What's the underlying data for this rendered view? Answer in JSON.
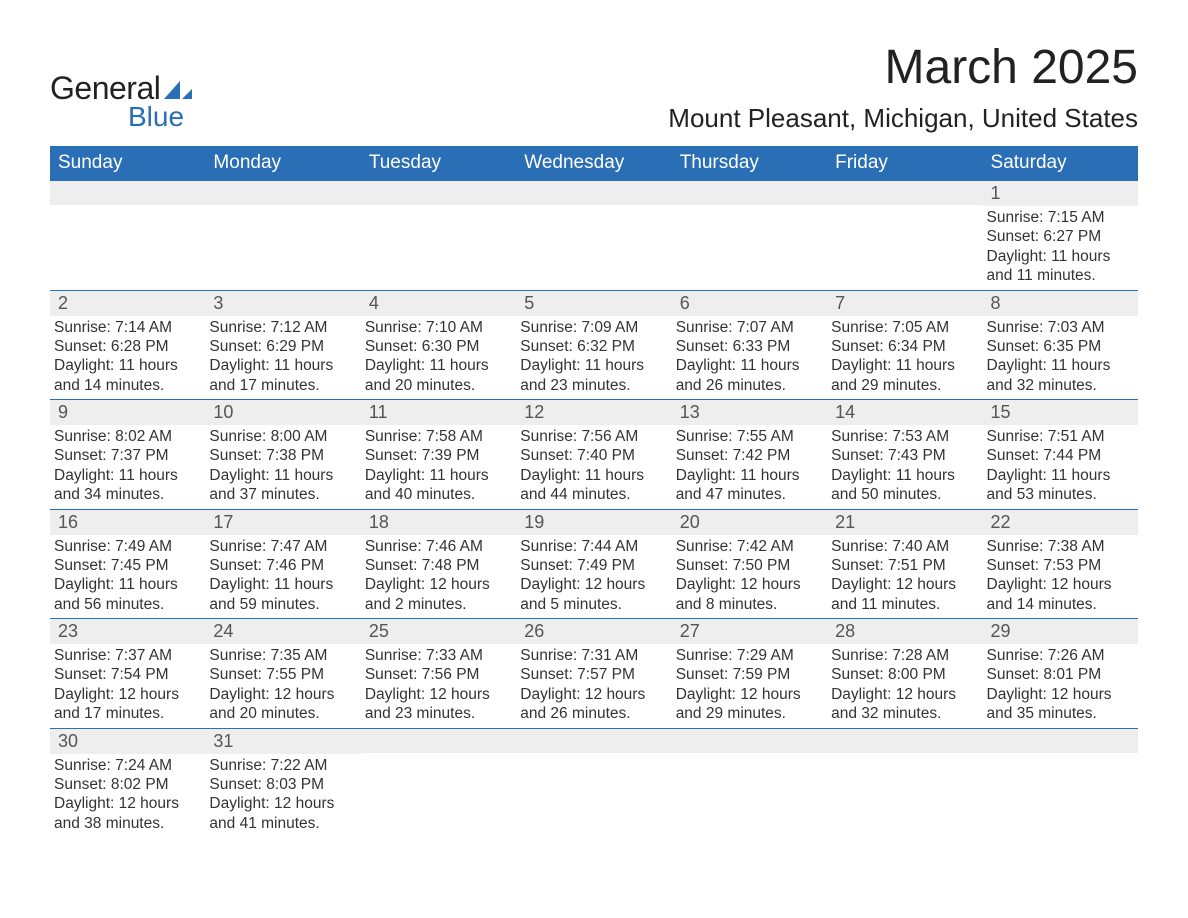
{
  "logo": {
    "text1": "General",
    "text2": "Blue",
    "accent_color": "#2a6fb5"
  },
  "title": "March 2025",
  "location": "Mount Pleasant, Michigan, United States",
  "colors": {
    "header_bg": "#2a6fb5",
    "header_text": "#ffffff",
    "daynum_bg": "#eeeeee",
    "daynum_text": "#555555",
    "body_text": "#333333",
    "cell_border": "#2a6fb5",
    "page_bg": "#ffffff"
  },
  "typography": {
    "title_fontsize": 48,
    "location_fontsize": 26,
    "header_fontsize": 19,
    "daynum_fontsize": 18,
    "body_fontsize": 15.5
  },
  "day_headers": [
    "Sunday",
    "Monday",
    "Tuesday",
    "Wednesday",
    "Thursday",
    "Friday",
    "Saturday"
  ],
  "weeks": [
    [
      null,
      null,
      null,
      null,
      null,
      null,
      {
        "n": "1",
        "sr": "7:15 AM",
        "ss": "6:27 PM",
        "dl": "11 hours and 11 minutes."
      }
    ],
    [
      {
        "n": "2",
        "sr": "7:14 AM",
        "ss": "6:28 PM",
        "dl": "11 hours and 14 minutes."
      },
      {
        "n": "3",
        "sr": "7:12 AM",
        "ss": "6:29 PM",
        "dl": "11 hours and 17 minutes."
      },
      {
        "n": "4",
        "sr": "7:10 AM",
        "ss": "6:30 PM",
        "dl": "11 hours and 20 minutes."
      },
      {
        "n": "5",
        "sr": "7:09 AM",
        "ss": "6:32 PM",
        "dl": "11 hours and 23 minutes."
      },
      {
        "n": "6",
        "sr": "7:07 AM",
        "ss": "6:33 PM",
        "dl": "11 hours and 26 minutes."
      },
      {
        "n": "7",
        "sr": "7:05 AM",
        "ss": "6:34 PM",
        "dl": "11 hours and 29 minutes."
      },
      {
        "n": "8",
        "sr": "7:03 AM",
        "ss": "6:35 PM",
        "dl": "11 hours and 32 minutes."
      }
    ],
    [
      {
        "n": "9",
        "sr": "8:02 AM",
        "ss": "7:37 PM",
        "dl": "11 hours and 34 minutes."
      },
      {
        "n": "10",
        "sr": "8:00 AM",
        "ss": "7:38 PM",
        "dl": "11 hours and 37 minutes."
      },
      {
        "n": "11",
        "sr": "7:58 AM",
        "ss": "7:39 PM",
        "dl": "11 hours and 40 minutes."
      },
      {
        "n": "12",
        "sr": "7:56 AM",
        "ss": "7:40 PM",
        "dl": "11 hours and 44 minutes."
      },
      {
        "n": "13",
        "sr": "7:55 AM",
        "ss": "7:42 PM",
        "dl": "11 hours and 47 minutes."
      },
      {
        "n": "14",
        "sr": "7:53 AM",
        "ss": "7:43 PM",
        "dl": "11 hours and 50 minutes."
      },
      {
        "n": "15",
        "sr": "7:51 AM",
        "ss": "7:44 PM",
        "dl": "11 hours and 53 minutes."
      }
    ],
    [
      {
        "n": "16",
        "sr": "7:49 AM",
        "ss": "7:45 PM",
        "dl": "11 hours and 56 minutes."
      },
      {
        "n": "17",
        "sr": "7:47 AM",
        "ss": "7:46 PM",
        "dl": "11 hours and 59 minutes."
      },
      {
        "n": "18",
        "sr": "7:46 AM",
        "ss": "7:48 PM",
        "dl": "12 hours and 2 minutes."
      },
      {
        "n": "19",
        "sr": "7:44 AM",
        "ss": "7:49 PM",
        "dl": "12 hours and 5 minutes."
      },
      {
        "n": "20",
        "sr": "7:42 AM",
        "ss": "7:50 PM",
        "dl": "12 hours and 8 minutes."
      },
      {
        "n": "21",
        "sr": "7:40 AM",
        "ss": "7:51 PM",
        "dl": "12 hours and 11 minutes."
      },
      {
        "n": "22",
        "sr": "7:38 AM",
        "ss": "7:53 PM",
        "dl": "12 hours and 14 minutes."
      }
    ],
    [
      {
        "n": "23",
        "sr": "7:37 AM",
        "ss": "7:54 PM",
        "dl": "12 hours and 17 minutes."
      },
      {
        "n": "24",
        "sr": "7:35 AM",
        "ss": "7:55 PM",
        "dl": "12 hours and 20 minutes."
      },
      {
        "n": "25",
        "sr": "7:33 AM",
        "ss": "7:56 PM",
        "dl": "12 hours and 23 minutes."
      },
      {
        "n": "26",
        "sr": "7:31 AM",
        "ss": "7:57 PM",
        "dl": "12 hours and 26 minutes."
      },
      {
        "n": "27",
        "sr": "7:29 AM",
        "ss": "7:59 PM",
        "dl": "12 hours and 29 minutes."
      },
      {
        "n": "28",
        "sr": "7:28 AM",
        "ss": "8:00 PM",
        "dl": "12 hours and 32 minutes."
      },
      {
        "n": "29",
        "sr": "7:26 AM",
        "ss": "8:01 PM",
        "dl": "12 hours and 35 minutes."
      }
    ],
    [
      {
        "n": "30",
        "sr": "7:24 AM",
        "ss": "8:02 PM",
        "dl": "12 hours and 38 minutes."
      },
      {
        "n": "31",
        "sr": "7:22 AM",
        "ss": "8:03 PM",
        "dl": "12 hours and 41 minutes."
      },
      null,
      null,
      null,
      null,
      null
    ]
  ],
  "labels": {
    "sunrise": "Sunrise: ",
    "sunset": "Sunset: ",
    "daylight": "Daylight: "
  }
}
